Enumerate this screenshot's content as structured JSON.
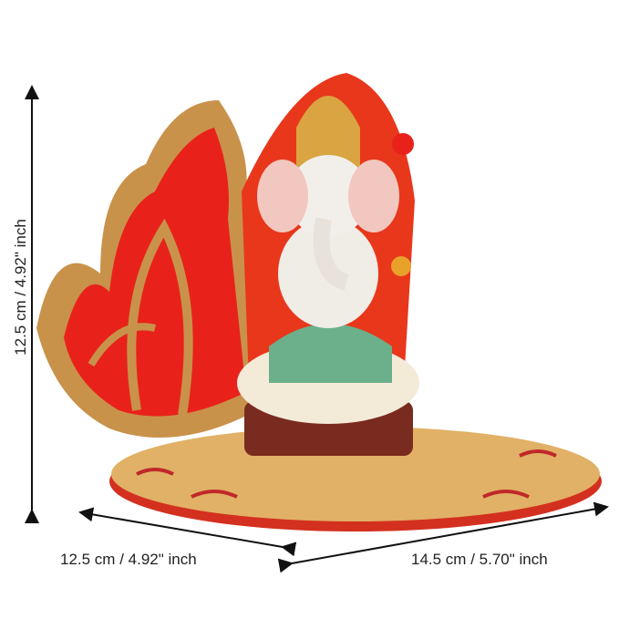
{
  "dimensions": {
    "height": "12.5 cm / 4.92\" inch",
    "depth": "12.5 cm / 4.92\" inch",
    "width": "14.5 cm / 5.70\" inch"
  },
  "colors": {
    "lotus_red": "#e8221b",
    "gold": "#c9924a",
    "base_gold": "#e0b166",
    "arrow": "#111111"
  }
}
